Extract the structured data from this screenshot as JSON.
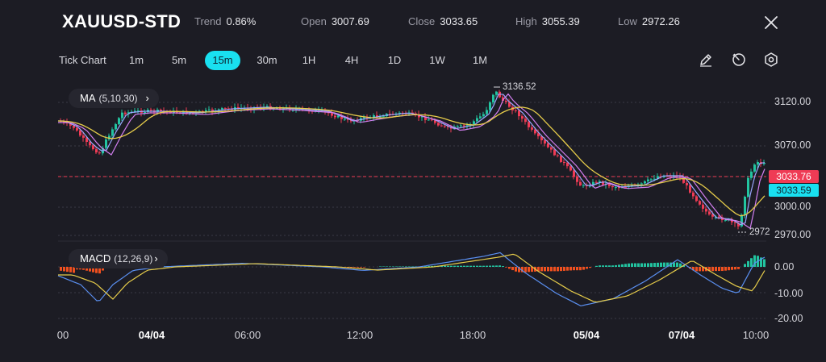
{
  "header": {
    "symbol": "XAUUSD-STD",
    "stats": [
      {
        "label": "Trend",
        "value": "0.86%"
      },
      {
        "label": "Open",
        "value": "3007.69"
      },
      {
        "label": "Close",
        "value": "3033.65"
      },
      {
        "label": "High",
        "value": "3055.39"
      },
      {
        "label": "Low",
        "value": "2972.26"
      }
    ]
  },
  "timeframes": {
    "tick_label": "Tick Chart",
    "items": [
      "1m",
      "5m",
      "15m",
      "30m",
      "1H",
      "4H",
      "1D",
      "1W",
      "1M"
    ],
    "active": "15m"
  },
  "toolbar": {
    "icons": [
      "draw-icon",
      "timer-icon",
      "settings-icon"
    ]
  },
  "price_panel": {
    "indicator_name": "MA",
    "indicator_params": "(5,10,30)",
    "axis_labels": [
      "3120.00",
      "3070.00",
      "3000.00",
      "2970.00"
    ],
    "current_price_tag": "3033.76",
    "ma_tag": "3033.59",
    "high_marker": "3136.52",
    "low_marker": "2972",
    "colors": {
      "up": "#22c4a0",
      "down": "#ef3b55",
      "ma5": "#9aa7ff",
      "ma10": "#d27ff0",
      "ma30": "#e6cc4a",
      "tag_cyan": "#19e0f0"
    }
  },
  "macd_panel": {
    "indicator_name": "MACD",
    "indicator_params": "(12,26,9)",
    "axis_labels": [
      "0.00",
      "-10.00",
      "-20.00"
    ],
    "colors": {
      "pos": "#22c4a0",
      "neg": "#f0501f",
      "dif": "#5a8ff0",
      "dea": "#e6cc4a"
    }
  },
  "time_axis": [
    {
      "label": "00",
      "bold": false
    },
    {
      "label": "04/04",
      "bold": true
    },
    {
      "label": "06:00",
      "bold": false
    },
    {
      "label": "12:00",
      "bold": false
    },
    {
      "label": "18:00",
      "bold": false
    },
    {
      "label": "05/04",
      "bold": true
    },
    {
      "label": "07/04",
      "bold": true
    },
    {
      "label": "10:00",
      "bold": false
    }
  ]
}
